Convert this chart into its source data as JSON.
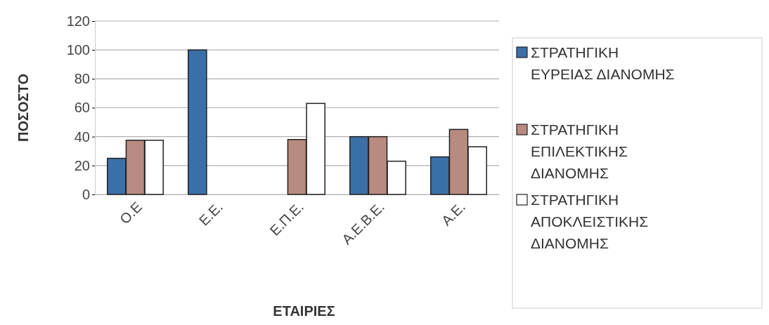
{
  "chart_data": {
    "type": "bar",
    "xlabel": "ΕΤΑΙΡΙΕΣ",
    "ylabel": "ΠΟΣΟΣΤΟ",
    "categories": [
      "Ο.Ε",
      "Ε.Ε.",
      "Ε.Π.Ε.",
      "Α.Ε.Β.Ε.",
      "Α.Ε."
    ],
    "series": [
      {
        "name": "ΣΤΡΑΤΗΓΙΚΗ ΕΥΡΕΙΑΣ ΔΙΑΝΟΜΗΣ",
        "color": "#3b6fa8",
        "values": [
          25,
          100,
          0,
          40,
          26
        ]
      },
      {
        "name": "ΣΤΡΑΤΗΓΙΚΗ ΕΠΙΛΕΚΤΙΚΗΣ ΔΙΑΝΟΜΗΣ",
        "color": "#b98a80",
        "values": [
          37.5,
          0,
          38,
          40,
          45
        ]
      },
      {
        "name": "ΣΤΡΑΤΗΓΙΚΗ ΑΠΟΚΛΕΙΣΤΙΚΗΣ ΔΙΑΝΟΜΗΣ",
        "color": "#ffffff",
        "values": [
          37.5,
          0,
          63,
          23,
          33
        ]
      }
    ],
    "ylim": [
      0,
      120
    ],
    "yticks": [
      0,
      20,
      40,
      60,
      80,
      100,
      120
    ],
    "grid": "y",
    "legend": "right"
  }
}
